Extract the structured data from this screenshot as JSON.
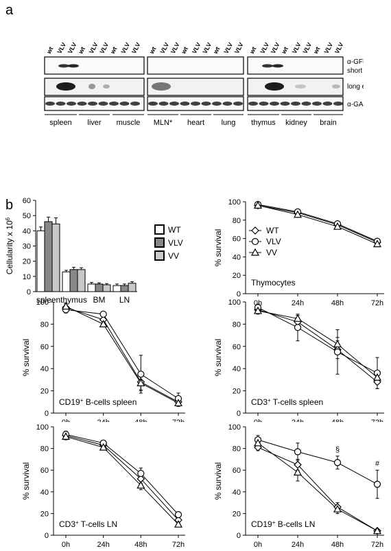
{
  "panel_a": {
    "letter": "a",
    "lanes": [
      "wt",
      "VLV",
      "VLV",
      "wt",
      "VLV",
      "VLV",
      "wt",
      "VLV",
      "VLV",
      "wt",
      "VLV",
      "VLV",
      "wt",
      "VLV",
      "VLV",
      "wt",
      "VLV",
      "VLV",
      "wt",
      "VLV",
      "VLV",
      "wt",
      "VLV",
      "VLV",
      "wt",
      "VLV",
      "VLV"
    ],
    "row_labels": [
      "α-GFP",
      "short exp.",
      "long exp.",
      "α-GAPDH"
    ],
    "tissues": [
      "spleen",
      "liver",
      "muscle",
      "MLN*",
      "heart",
      "lung",
      "thymus",
      "kidney",
      "brain"
    ]
  },
  "panel_b": {
    "letter": "b"
  },
  "chart_data": [
    {
      "id": "cellularity",
      "type": "bar",
      "ylabel": "Cellularity x 10",
      "ylabel_sup": "6",
      "categories": [
        "spleen",
        "thymus",
        "BM",
        "LN"
      ],
      "ylim": [
        0,
        60
      ],
      "yticks": [
        "0",
        "10",
        "20",
        "30",
        "40",
        "50",
        "60"
      ],
      "series": [
        {
          "name": "WT",
          "values": [
            40,
            13,
            5,
            4
          ],
          "errors": [
            2.5,
            1,
            1,
            1
          ],
          "color": "#ffffff"
        },
        {
          "name": "VLV",
          "values": [
            46,
            14.5,
            5,
            4
          ],
          "errors": [
            3,
            1.5,
            0.8,
            1
          ],
          "color": "#888888"
        },
        {
          "name": "VV",
          "values": [
            44.5,
            14.5,
            4.5,
            5.5
          ],
          "errors": [
            4,
            1.2,
            0.8,
            1
          ],
          "color": "#c8c8c8"
        }
      ],
      "legend": "right"
    },
    {
      "id": "thymocytes",
      "type": "line",
      "ylabel": "% survival",
      "x": [
        "0h",
        "24h",
        "48h",
        "72h"
      ],
      "ylim": [
        0,
        100
      ],
      "yticks": [
        "0",
        "20",
        "40",
        "60",
        "80",
        "100"
      ],
      "annotation": "Thymocytes",
      "legend": "left",
      "series": [
        {
          "name": "WT",
          "marker": "diamond",
          "values": [
            96,
            88,
            75,
            56
          ],
          "errors": [
            2,
            2,
            2,
            2
          ]
        },
        {
          "name": "VLV",
          "marker": "circle",
          "values": [
            97,
            89,
            76,
            57
          ],
          "errors": [
            2,
            2,
            2,
            2
          ]
        },
        {
          "name": "VV",
          "marker": "triangle",
          "values": [
            96,
            86,
            73,
            54
          ],
          "errors": [
            2,
            2,
            2,
            2
          ]
        }
      ]
    },
    {
      "id": "cd19-spleen",
      "type": "line",
      "ylabel": "% survival",
      "x": [
        "0h",
        "24h",
        "48h",
        "72h"
      ],
      "ylim": [
        0,
        100
      ],
      "yticks": [
        "0",
        "20",
        "40",
        "60",
        "80",
        "100"
      ],
      "annotation": "CD19",
      "annotation_sup": "+",
      "annotation_rest": " B-cells spleen",
      "series": [
        {
          "marker": "diamond",
          "values": [
            95,
            84,
            28,
            10
          ],
          "errors": [
            3,
            2,
            8,
            3
          ]
        },
        {
          "marker": "circle",
          "values": [
            93,
            89,
            35,
            13
          ],
          "errors": [
            3,
            2,
            17,
            5
          ]
        },
        {
          "marker": "triangle",
          "values": [
            96,
            80,
            27,
            9
          ],
          "errors": [
            3,
            2,
            6,
            3
          ]
        }
      ]
    },
    {
      "id": "cd3-spleen",
      "type": "line",
      "ylabel": "% survival",
      "x": [
        "0h",
        "24h",
        "48h",
        "72h"
      ],
      "ylim": [
        0,
        100
      ],
      "yticks": [
        "0",
        "20",
        "40",
        "60",
        "80",
        "100"
      ],
      "annotation": "CD3",
      "annotation_sup": "+",
      "annotation_rest": " T-cells spleen",
      "series": [
        {
          "marker": "diamond",
          "values": [
            93,
            82,
            57,
            28
          ],
          "errors": [
            3,
            4,
            8,
            6
          ]
        },
        {
          "marker": "circle",
          "values": [
            95,
            77,
            55,
            36
          ],
          "errors": [
            3,
            12,
            20,
            14
          ]
        },
        {
          "marker": "triangle",
          "values": [
            92,
            85,
            62,
            32
          ],
          "errors": [
            3,
            3,
            6,
            6
          ]
        }
      ]
    },
    {
      "id": "cd3-ln",
      "type": "line",
      "ylabel": "% survival",
      "x": [
        "0h",
        "24h",
        "48h",
        "72h"
      ],
      "ylim": [
        0,
        100
      ],
      "yticks": [
        "0",
        "20",
        "40",
        "60",
        "80",
        "100"
      ],
      "annotation": "CD3",
      "annotation_sup": "+",
      "annotation_rest": " T-cells LN",
      "series": [
        {
          "marker": "diamond",
          "values": [
            92,
            83,
            52,
            14
          ],
          "errors": [
            3,
            2,
            4,
            2
          ]
        },
        {
          "marker": "circle",
          "values": [
            93,
            85,
            57,
            19
          ],
          "errors": [
            3,
            2,
            5,
            2
          ]
        },
        {
          "marker": "triangle",
          "values": [
            91,
            81,
            46,
            10
          ],
          "errors": [
            3,
            2,
            4,
            2
          ]
        }
      ]
    },
    {
      "id": "cd19-ln",
      "type": "line",
      "ylabel": "% survival",
      "x": [
        "0h",
        "24h",
        "48h",
        "72h"
      ],
      "ylim": [
        0,
        100
      ],
      "yticks": [
        "0",
        "20",
        "40",
        "60",
        "80",
        "100"
      ],
      "annotation": "CD19",
      "annotation_sup": "+",
      "annotation_rest": " B-cells LN",
      "marks": [
        "§",
        "#"
      ],
      "series": [
        {
          "marker": "diamond",
          "values": [
            81,
            65,
            26,
            4
          ],
          "errors": [
            3,
            5,
            4,
            1
          ]
        },
        {
          "marker": "circle",
          "values": [
            88,
            77,
            67,
            47
          ],
          "errors": [
            4,
            8,
            6,
            13
          ]
        },
        {
          "marker": "triangle",
          "values": [
            85,
            58,
            24,
            4
          ],
          "errors": [
            3,
            8,
            4,
            1
          ]
        }
      ]
    }
  ]
}
